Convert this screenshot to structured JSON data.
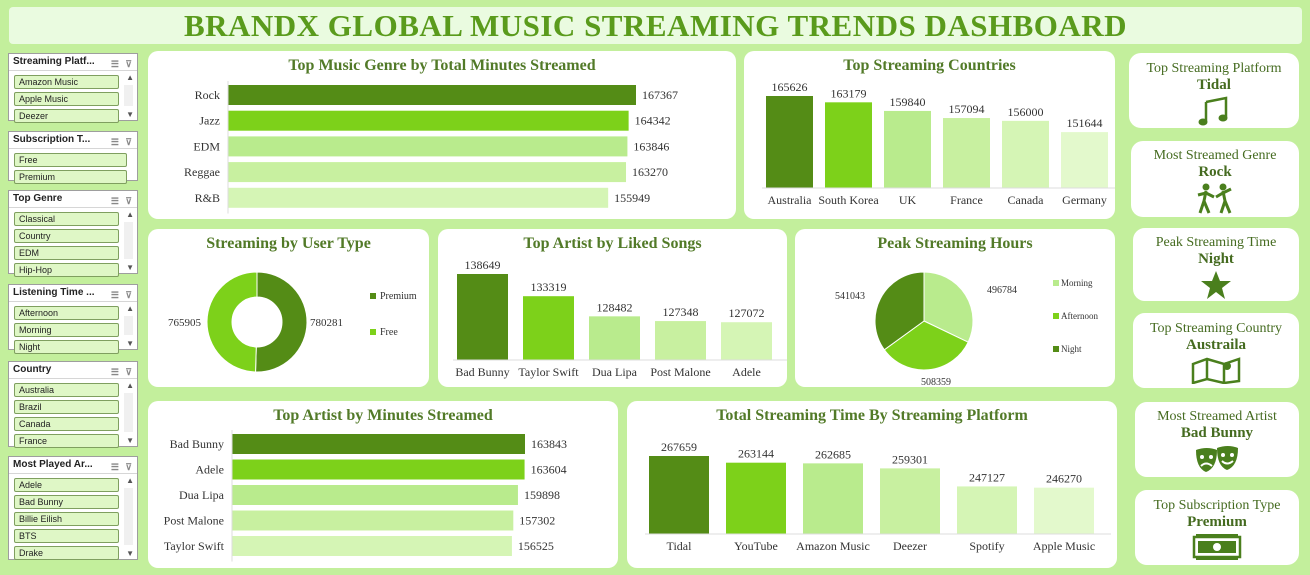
{
  "title": "BRANDX GLOBAL MUSIC STREAMING TRENDS DASHBOARD",
  "colors": {
    "c1": "#548c16",
    "c2": "#7dd11a",
    "c3": "#b9eb8d",
    "c4": "#c8f0a0",
    "c5": "#d5f5b5",
    "c6": "#e3f9cc"
  },
  "slicers": [
    {
      "title": "Streaming Platf...",
      "items": [
        "Amazon Music",
        "Apple Music",
        "Deezer"
      ]
    },
    {
      "title": "Subscription T...",
      "items": [
        "Free",
        "Premium"
      ]
    },
    {
      "title": "Top Genre",
      "items": [
        "Classical",
        "Country",
        "EDM",
        "Hip-Hop"
      ]
    },
    {
      "title": "Listening Time ...",
      "items": [
        "Afternoon",
        "Morning",
        "Night"
      ]
    },
    {
      "title": "Country",
      "items": [
        "Australia",
        "Brazil",
        "Canada",
        "France"
      ]
    },
    {
      "title": "Most Played Ar...",
      "items": [
        "Adele",
        "Bad Bunny",
        "Billie Eilish",
        "BTS",
        "Drake"
      ]
    }
  ],
  "kpis": [
    {
      "label": "Top Streaming Platform",
      "value": "Tidal",
      "icon": "music-note-icon"
    },
    {
      "label": "Most Streamed Genre",
      "value": "Rock",
      "icon": "dancers-icon"
    },
    {
      "label": "Peak Streaming Time",
      "value": "Night",
      "icon": "star-icon"
    },
    {
      "label": "Top Streaming Country",
      "value": "Austraila",
      "icon": "map-icon"
    },
    {
      "label": "Most Streamed Artist",
      "value": "Bad Bunny",
      "icon": "theater-masks-icon"
    },
    {
      "label": "Top Subscription Type",
      "value": "Premium",
      "icon": "cash-icon"
    }
  ],
  "chart_data": [
    {
      "id": "genre",
      "type": "bar",
      "orientation": "horizontal",
      "title": "Top Music Genre by Total Minutes Streamed",
      "categories": [
        "Rock",
        "Jazz",
        "EDM",
        "Reggae",
        "R&B"
      ],
      "values": [
        167367,
        164342,
        163846,
        163270,
        155949
      ]
    },
    {
      "id": "countries",
      "type": "bar",
      "title": "Top Streaming Countries",
      "categories": [
        "Australia",
        "South Korea",
        "UK",
        "France",
        "Canada",
        "Germany"
      ],
      "values": [
        165626,
        163179,
        159840,
        157094,
        156000,
        151644
      ]
    },
    {
      "id": "usertype",
      "type": "pie",
      "donut": true,
      "title": "Streaming by User Type",
      "categories": [
        "Premium",
        "Free"
      ],
      "values": [
        780281,
        765905
      ],
      "legend": "right"
    },
    {
      "id": "liked",
      "type": "bar",
      "title": "Top Artist by Liked Songs",
      "categories": [
        "Bad Bunny",
        "Taylor Swift",
        "Dua Lipa",
        "Post Malone",
        "Adele"
      ],
      "values": [
        138649,
        133319,
        128482,
        127348,
        127072
      ]
    },
    {
      "id": "hours",
      "type": "pie",
      "title": "Peak Streaming Hours",
      "categories": [
        "Morning",
        "Afternoon",
        "Night"
      ],
      "values": [
        496784,
        508359,
        541043
      ],
      "legend": "right"
    },
    {
      "id": "artistmin",
      "type": "bar",
      "orientation": "horizontal",
      "title": "Top Artist by Minutes Streamed",
      "categories": [
        "Bad Bunny",
        "Adele",
        "Dua Lipa",
        "Post Malone",
        "Taylor Swift"
      ],
      "values": [
        163843,
        163604,
        159898,
        157302,
        156525
      ]
    },
    {
      "id": "platform",
      "type": "bar",
      "title": "Total Streaming Time By Streaming Platform",
      "categories": [
        "Tidal",
        "YouTube",
        "Amazon Music",
        "Deezer",
        "Spotify",
        "Apple Music"
      ],
      "values": [
        267659,
        263144,
        262685,
        259301,
        247127,
        246270
      ]
    }
  ]
}
